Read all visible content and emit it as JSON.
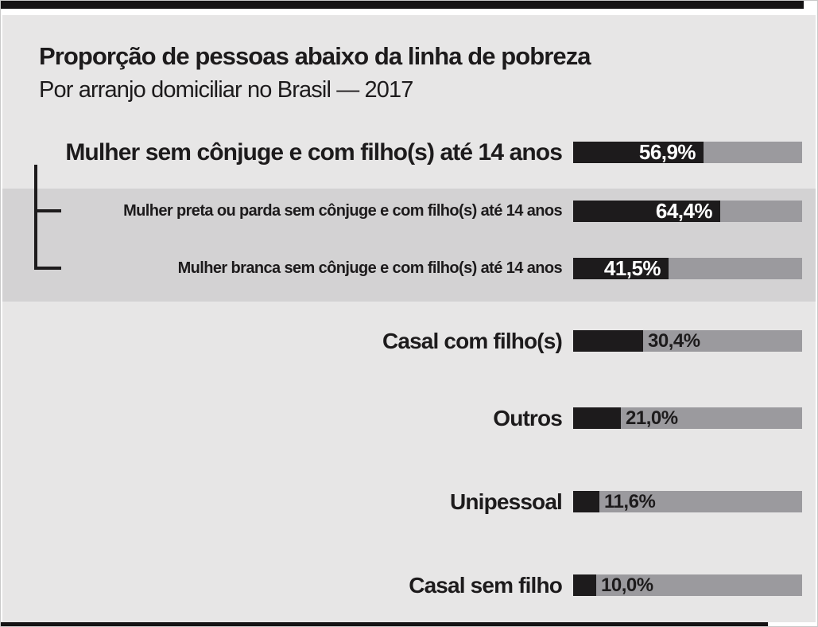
{
  "header": {
    "title": "Proporção de pessoas abaixo da linha de pobreza",
    "subtitle": "Por arranjo domiciliar no Brasil — 2017"
  },
  "chart_data": {
    "type": "bar",
    "orientation": "horizontal",
    "title": "Proporção de pessoas abaixo da linha de pobreza",
    "subtitle": "Por arranjo domiciliar no Brasil — 2017",
    "xlim": [
      0,
      100
    ],
    "unit": "%",
    "decimal_separator": ",",
    "grid": false,
    "legend": false,
    "rows": [
      {
        "label": "Mulher sem cônjuge e com filho(s) até 14 anos",
        "value": 56.9,
        "value_label": "56,9%",
        "group": "parent",
        "value_position": "inside"
      },
      {
        "label": "Mulher preta ou parda sem cônjuge e com filho(s) até 14 anos",
        "value": 64.4,
        "value_label": "64,4%",
        "group": "sub",
        "value_position": "inside"
      },
      {
        "label": "Mulher branca sem cônjuge e com filho(s) até 14 anos",
        "value": 41.5,
        "value_label": "41,5%",
        "group": "sub",
        "value_position": "inside"
      },
      {
        "label": "Casal com filho(s)",
        "value": 30.4,
        "value_label": "30,4%",
        "group": "main",
        "value_position": "outside"
      },
      {
        "label": "Outros",
        "value": 21.0,
        "value_label": "21,0%",
        "group": "main",
        "value_position": "outside"
      },
      {
        "label": "Unipessoal",
        "value": 11.6,
        "value_label": "11,6%",
        "group": "main",
        "value_position": "outside"
      },
      {
        "label": "Casal sem filho",
        "value": 10.0,
        "value_label": "10,0%",
        "group": "main",
        "value_position": "outside"
      }
    ],
    "colors": {
      "bar_fill": "#1d1b1c",
      "bar_track": "#9b9a9e",
      "highlight_band": "#d3d2d3",
      "card_background": "#e7e6e6",
      "rule": "#151314",
      "text": "#1d1b1c",
      "value_text_inside": "#ffffff"
    }
  }
}
